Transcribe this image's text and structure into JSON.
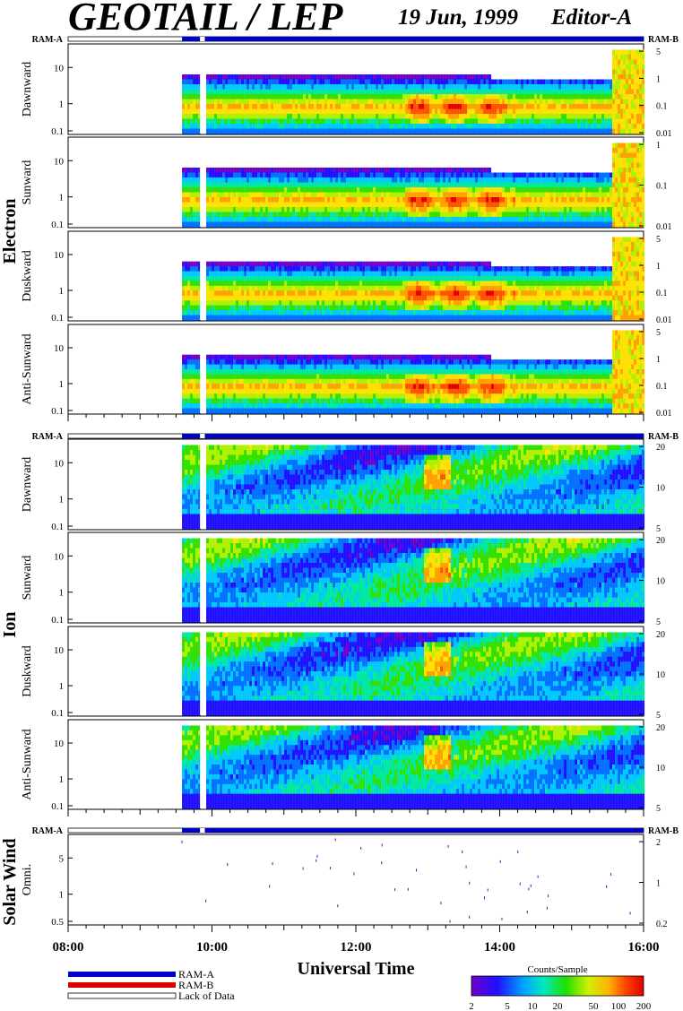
{
  "header": {
    "title": "GEOTAIL / LEP",
    "date": "19 Jun, 1999",
    "editor": "Editor-A"
  },
  "ram_bar_labels": {
    "left": "RAM-A",
    "right": "RAM-B"
  },
  "groups": {
    "electron": "Electron",
    "ion": "Ion",
    "solar_wind": "Solar Wind"
  },
  "xaxis": {
    "label": "Universal Time",
    "tick_labels": [
      "08:00",
      "10:00",
      "12:00",
      "14:00",
      "16:00"
    ]
  },
  "legend": {
    "ram_a": "RAM-A",
    "ram_b": "RAM-B",
    "lack": "Lack of Data",
    "colorbar_title": "Counts/Sample",
    "colorbar_ticks": [
      "2",
      "5",
      "10",
      "20",
      "50",
      "100",
      "200"
    ]
  },
  "colors": {
    "ram_a": "#0000c8",
    "ram_b": "#dd0000"
  },
  "chart_data": {
    "type": "heatmap",
    "x_range": [
      "08:00",
      "16:00"
    ],
    "data_start": "09:35",
    "data_gap": [
      "09:50",
      "09:54"
    ],
    "panels": [
      {
        "name": "Dawnward",
        "group": "Electron",
        "left_ticks": [
          "10",
          "1",
          "0.1"
        ],
        "right_ticks": [
          "5",
          "1",
          "0.1",
          "0.01"
        ]
      },
      {
        "name": "Sunward",
        "group": "Electron",
        "left_ticks": [
          "10",
          "1",
          "0.1"
        ],
        "right_ticks": [
          "1",
          "0.1",
          "0.01"
        ]
      },
      {
        "name": "Duskward",
        "group": "Electron",
        "left_ticks": [
          "10",
          "1",
          "0.1"
        ],
        "right_ticks": [
          "5",
          "1",
          "0.1",
          "0.01"
        ]
      },
      {
        "name": "Anti-Sunward",
        "group": "Electron",
        "left_ticks": [
          "10",
          "1",
          "0.1"
        ],
        "right_ticks": [
          "5",
          "1",
          "0.1",
          "0.01"
        ]
      },
      {
        "name": "Dawnward",
        "group": "Ion",
        "left_ticks": [
          "10",
          "1",
          "0.1"
        ],
        "right_ticks": [
          "20",
          "10",
          "5"
        ]
      },
      {
        "name": "Sunward",
        "group": "Ion",
        "left_ticks": [
          "10",
          "1",
          "0.1"
        ],
        "right_ticks": [
          "20",
          "10",
          "5"
        ]
      },
      {
        "name": "Duskward",
        "group": "Ion",
        "left_ticks": [
          "10",
          "1",
          "0.1"
        ],
        "right_ticks": [
          "20",
          "10",
          "5"
        ]
      },
      {
        "name": "Anti-Sunward",
        "group": "Ion",
        "left_ticks": [
          "10",
          "1",
          "0.1"
        ],
        "right_ticks": [
          "20",
          "10",
          "5"
        ]
      },
      {
        "name": "Omni.",
        "group": "Solar Wind",
        "left_ticks": [
          "5",
          "1",
          "0.5"
        ],
        "right_ticks": [
          "2",
          "1",
          "0.2"
        ]
      }
    ]
  }
}
